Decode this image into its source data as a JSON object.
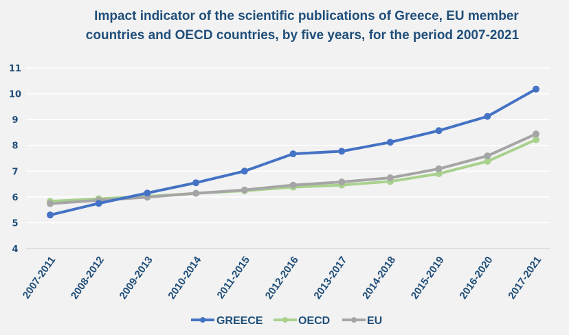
{
  "chart_data": {
    "type": "line",
    "title": "Impact indicator of the scientific publications of Greece, EU member countries and OECD countries, by five years, for the period 2007-2021",
    "title_lines": [
      "Impact indicator of the scientific publications of Greece, EU member",
      "countries and OECD countries, by five years, for the period 2007-2021"
    ],
    "xlabel": "",
    "ylabel": "",
    "categories": [
      "2007-2011",
      "2008-2012",
      "2009-2013",
      "2010-2014",
      "2011-2015",
      "2012-2016",
      "2013-2017",
      "2014-2018",
      "2015-2019",
      "2016-2020",
      "2017-2021"
    ],
    "ylim": [
      4,
      11
    ],
    "yticks": [
      4,
      5,
      6,
      7,
      8,
      9,
      10,
      11
    ],
    "grid": true,
    "legend_position": "bottom",
    "series": [
      {
        "name": "GREECE",
        "color": "#4472c4",
        "values": [
          5.3,
          5.75,
          6.15,
          6.55,
          7.0,
          7.67,
          7.77,
          8.12,
          8.57,
          9.12,
          10.18
        ]
      },
      {
        "name": "OECD",
        "color": "#a9d18e",
        "values": [
          5.83,
          5.93,
          6.02,
          6.14,
          6.24,
          6.38,
          6.46,
          6.6,
          6.9,
          7.38,
          8.22
        ]
      },
      {
        "name": "EU",
        "color": "#a5a5a5",
        "values": [
          5.74,
          5.87,
          5.99,
          6.14,
          6.27,
          6.46,
          6.58,
          6.74,
          7.09,
          7.59,
          8.44
        ]
      }
    ]
  }
}
